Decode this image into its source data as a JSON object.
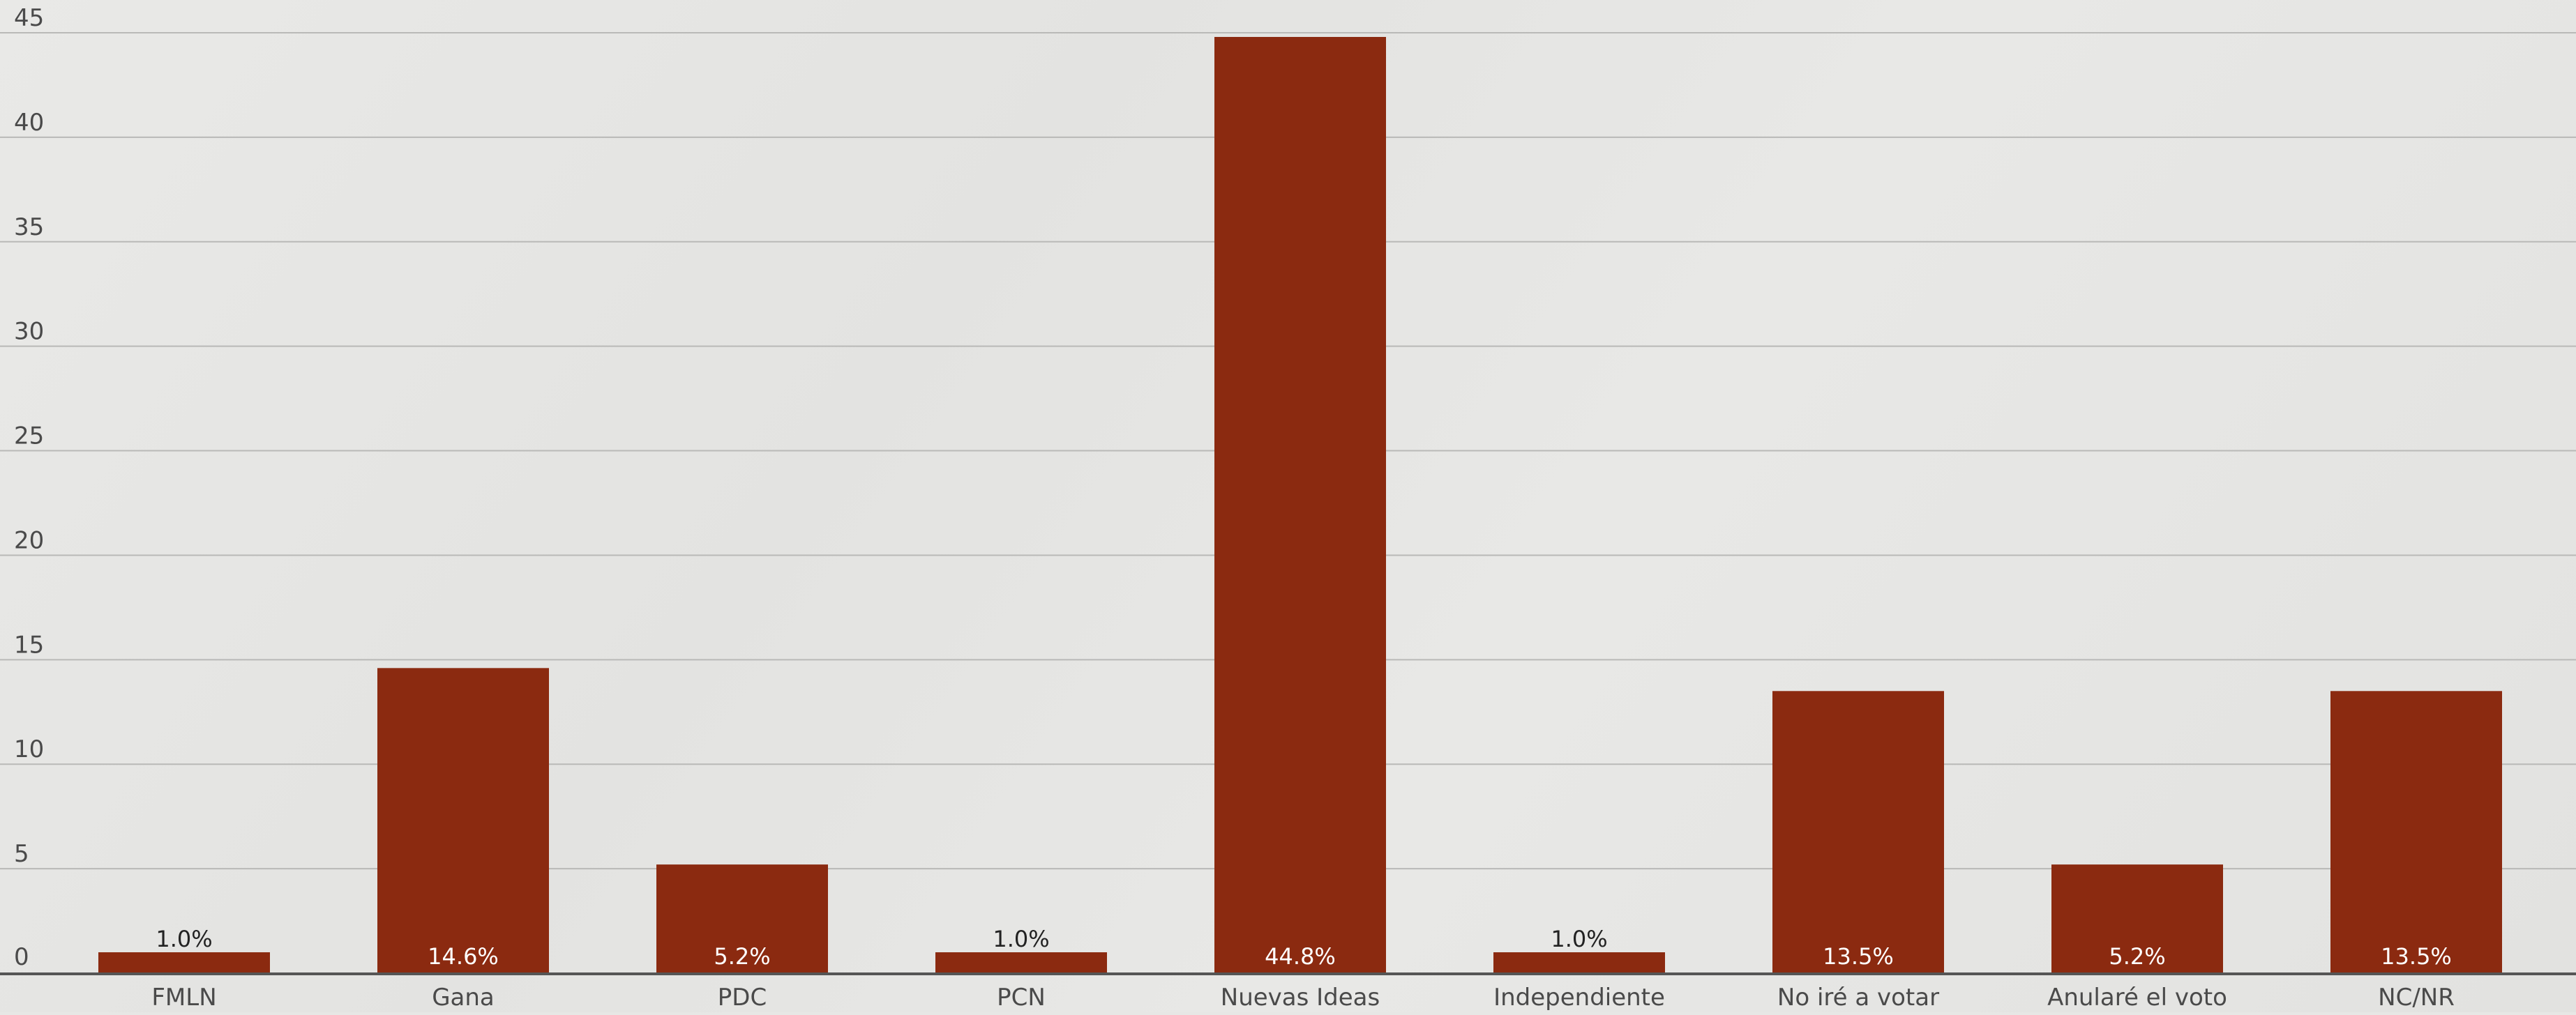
{
  "chart_data": {
    "type": "bar",
    "title": "",
    "xlabel": "",
    "ylabel": "",
    "categories": [
      "FMLN",
      "Gana",
      "PDC",
      "PCN",
      "Nuevas Ideas",
      "Independiente",
      "No iré a votar",
      "Anularé el voto",
      "NC/NR"
    ],
    "values": [
      1.0,
      14.6,
      5.2,
      1.0,
      44.8,
      1.0,
      13.5,
      5.2,
      13.5
    ],
    "data_labels": [
      "1.0%",
      "14.6%",
      "5.2%",
      "1.0%",
      "44.8%",
      "1.0%",
      "13.5%",
      "5.2%",
      "13.5%"
    ],
    "ylim": [
      0,
      45
    ],
    "yticks": [
      0,
      5,
      10,
      15,
      20,
      25,
      30,
      35,
      40,
      45
    ],
    "grid": true,
    "legend": "none",
    "colors": {
      "bar": "#8b2a10",
      "background": "#e7e7e5"
    }
  }
}
